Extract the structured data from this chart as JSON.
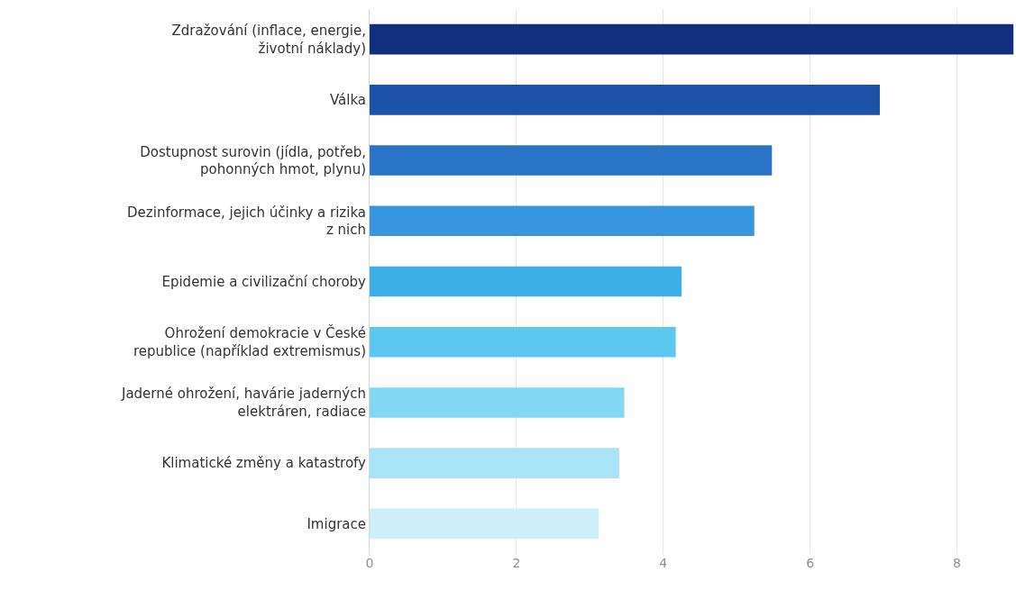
{
  "chart_data": {
    "type": "bar",
    "orientation": "horizontal",
    "categories": [
      "Zdražování (inflace, energie, životní náklady)",
      "Válka",
      "Dostupnost surovin (jídla, potřeb, pohonných hmot, plynu)",
      "Dezinformace, jejich účinky a rizika z nich",
      "Epidemie a civilizační choroby",
      "Ohrožení demokracie v České republice (například extremismus)",
      "Jaderné ohrožení, havárie jaderných elektráren, radiace",
      "Klimatické změny a katastrofy",
      "Imigrace"
    ],
    "values": [
      8.77,
      6.95,
      5.48,
      5.24,
      4.25,
      4.17,
      3.47,
      3.4,
      3.12
    ],
    "colors": [
      "#13307f",
      "#1c52a8",
      "#2b73c6",
      "#3896de",
      "#3eaee6",
      "#5bc8ef",
      "#82d8f3",
      "#a8e3f6",
      "#cdeffa"
    ],
    "xlim": [
      0,
      8.78
    ],
    "xticks": [
      0,
      2,
      4,
      6,
      8
    ],
    "grid": "x"
  }
}
